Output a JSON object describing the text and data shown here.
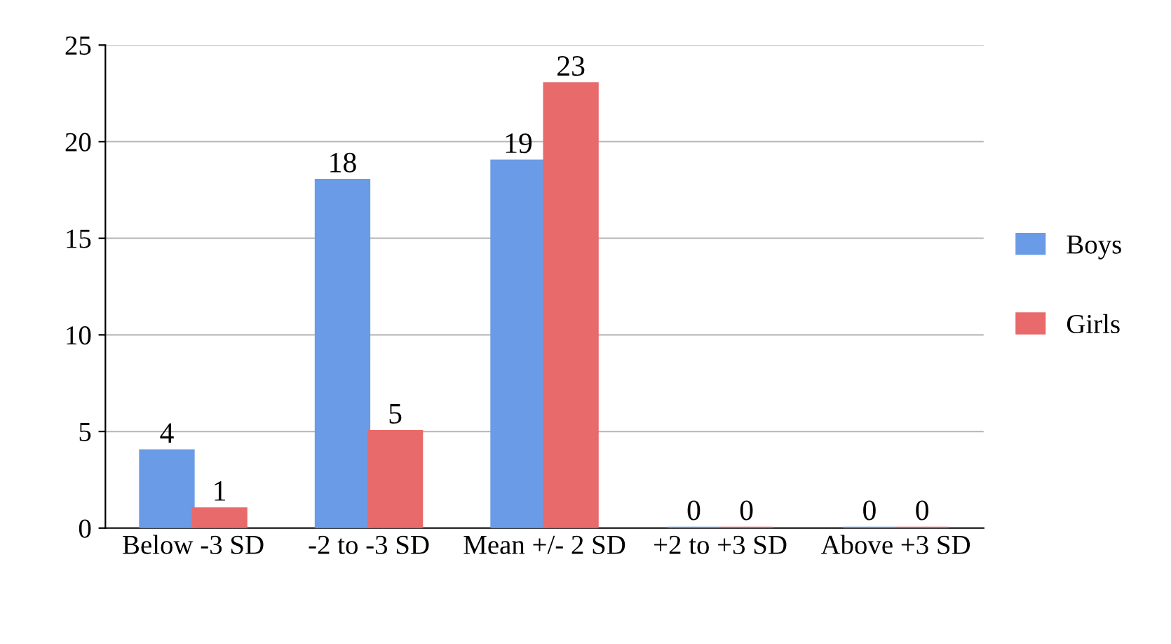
{
  "chart_data": {
    "type": "bar",
    "categories": [
      "Below -3 SD",
      "-2 to -3 SD",
      "Mean +/- 2 SD",
      "+2 to +3 SD",
      "Above +3 SD"
    ],
    "series": [
      {
        "name": "Boys",
        "color": "#6a9be6",
        "values": [
          4,
          18,
          19,
          0,
          0
        ]
      },
      {
        "name": "Girls",
        "color": "#e86a6a",
        "values": [
          1,
          5,
          23,
          0,
          0
        ]
      }
    ],
    "ylim": [
      0,
      25
    ],
    "yticks": [
      0,
      5,
      10,
      15,
      20,
      25
    ],
    "grid": "y",
    "legend": "right",
    "data_labels": true
  }
}
